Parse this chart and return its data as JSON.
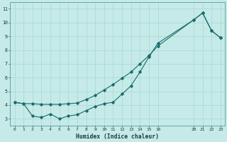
{
  "xlabel": "Humidex (Indice chaleur)",
  "background_color": "#c5eae8",
  "line_color": "#1a6b6b",
  "grid_color": "#a8d8d4",
  "xlim": [
    -0.5,
    23.5
  ],
  "ylim": [
    2.5,
    11.5
  ],
  "xticks": [
    0,
    1,
    2,
    3,
    4,
    5,
    6,
    7,
    8,
    9,
    10,
    11,
    12,
    13,
    14,
    15,
    16,
    20,
    21,
    22,
    23
  ],
  "yticks": [
    3,
    4,
    5,
    6,
    7,
    8,
    9,
    10,
    11
  ],
  "line1_x": [
    0,
    1,
    2,
    3,
    4,
    5,
    6,
    7,
    8,
    9,
    10,
    11,
    12,
    13,
    14,
    15,
    16,
    20,
    21,
    22,
    23
  ],
  "line1_y": [
    4.2,
    4.1,
    3.2,
    3.1,
    3.35,
    3.0,
    3.2,
    3.3,
    3.6,
    3.9,
    4.1,
    4.2,
    4.8,
    5.4,
    6.4,
    7.5,
    8.5,
    10.2,
    10.7,
    9.4,
    8.9
  ],
  "line2_x": [
    0,
    1,
    2,
    3,
    4,
    5,
    6,
    7,
    8,
    9,
    10,
    11,
    12,
    13,
    14,
    15,
    16,
    20,
    21,
    22,
    23
  ],
  "line2_y": [
    4.2,
    4.1,
    4.1,
    4.05,
    4.05,
    4.05,
    4.1,
    4.15,
    4.4,
    4.7,
    5.1,
    5.5,
    5.95,
    6.4,
    7.0,
    7.6,
    8.3,
    10.2,
    10.7,
    9.4,
    8.9
  ],
  "figsize": [
    3.2,
    2.0
  ],
  "dpi": 100
}
